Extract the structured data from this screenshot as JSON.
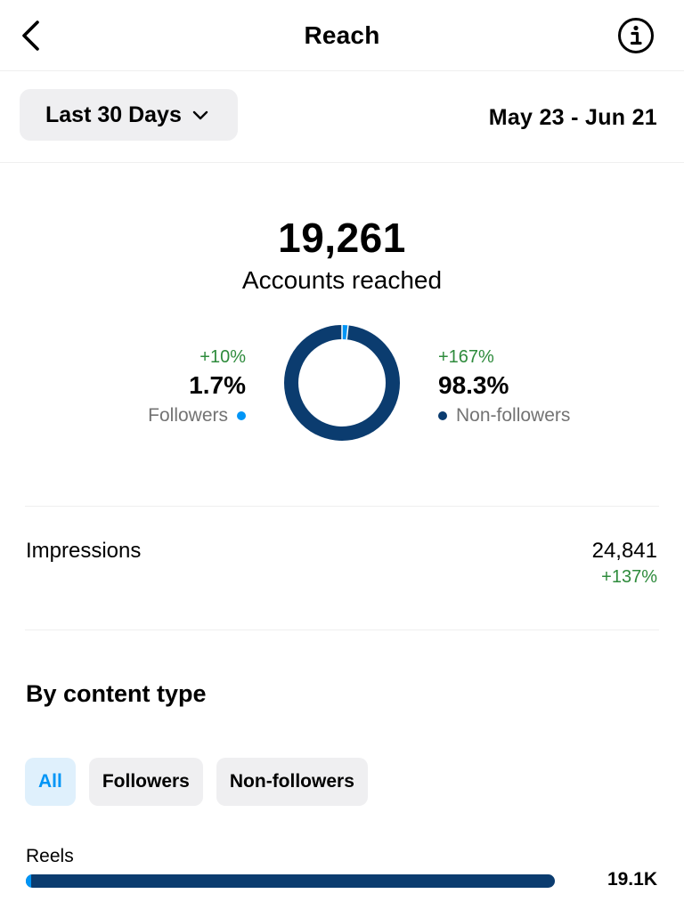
{
  "header": {
    "title": "Reach",
    "back_icon": "chevron-left-icon",
    "info_icon": "info-icon"
  },
  "range": {
    "label": "Last 30 Days",
    "dates": "May 23 - Jun 21"
  },
  "summary": {
    "accounts_reached": "19,261",
    "accounts_label": "Accounts reached",
    "followers": {
      "delta": "+10%",
      "pct": "1.7%",
      "label": "Followers",
      "share": 0.017,
      "color": "#0095f6"
    },
    "non_followers": {
      "delta": "+167%",
      "pct": "98.3%",
      "label": "Non-followers",
      "share": 0.983,
      "color": "#0b3c6f"
    }
  },
  "impressions": {
    "label": "Impressions",
    "value": "24,841",
    "delta": "+137%"
  },
  "content_type": {
    "title": "By content type",
    "tabs": [
      {
        "label": "All",
        "active": true
      },
      {
        "label": "Followers",
        "active": false
      },
      {
        "label": "Non-followers",
        "active": false
      }
    ],
    "rows": [
      {
        "label": "Reels",
        "value": "19.1K",
        "follower_share": 0.01
      }
    ]
  }
}
